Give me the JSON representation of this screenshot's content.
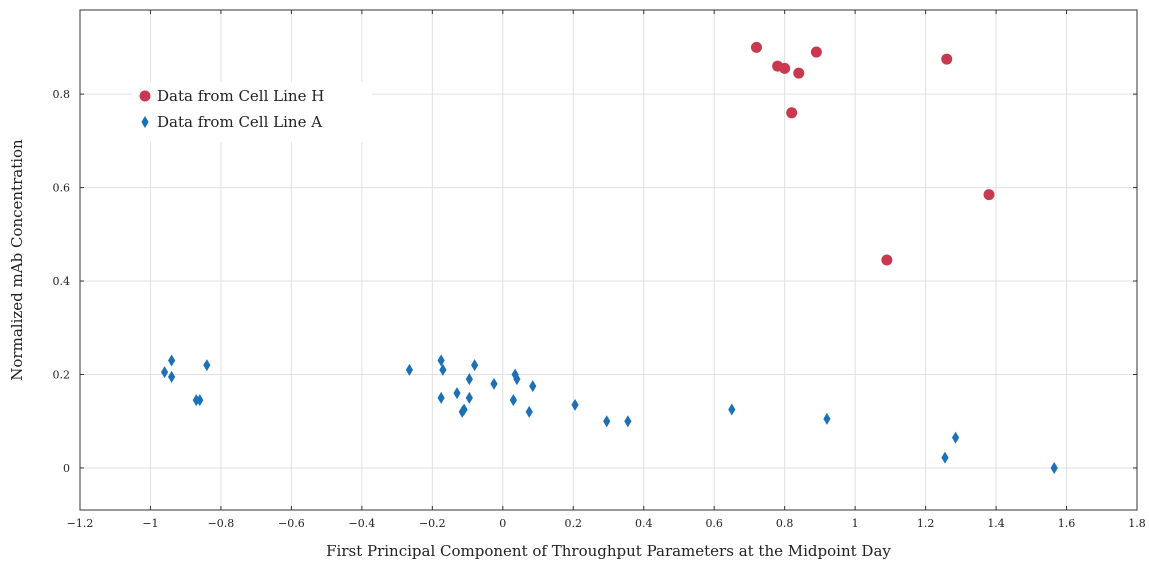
{
  "chart_data": {
    "type": "scatter",
    "title": "",
    "xlabel": "First Principal Component of Throughput Parameters at the Midpoint Day",
    "ylabel": "Normalized mAb Concentration",
    "xlim": [
      -1.2,
      1.8
    ],
    "ylim": [
      -0.09,
      0.98
    ],
    "x_ticks": [
      -1.2,
      -1,
      -0.8,
      -0.6,
      -0.4,
      -0.2,
      0,
      0.2,
      0.4,
      0.6,
      0.8,
      1,
      1.2,
      1.4,
      1.6,
      1.8
    ],
    "x_tick_labels": [
      "−1.2",
      "−1",
      "−0.8",
      "−0.6",
      "−0.4",
      "−0.2",
      "0",
      "0.2",
      "0.4",
      "0.6",
      "0.8",
      "1",
      "1.2",
      "1.4",
      "1.6",
      "1.8"
    ],
    "y_ticks": [
      0,
      0.2,
      0.4,
      0.6,
      0.8
    ],
    "y_tick_labels": [
      "0",
      "0.2",
      "0.4",
      "0.6",
      "0.8"
    ],
    "grid": true,
    "legend_position": "top-left",
    "series": [
      {
        "name": "Data from Cell Line H",
        "marker": "circle",
        "color": "#c8394f",
        "points": [
          [
            0.72,
            0.9
          ],
          [
            0.78,
            0.86
          ],
          [
            0.8,
            0.855
          ],
          [
            0.82,
            0.76
          ],
          [
            0.84,
            0.845
          ],
          [
            0.89,
            0.89
          ],
          [
            1.09,
            0.445
          ],
          [
            1.26,
            0.875
          ],
          [
            1.38,
            0.585
          ]
        ]
      },
      {
        "name": "Data from Cell Line A",
        "marker": "diamond",
        "color": "#1c70b6",
        "points": [
          [
            -0.96,
            0.205
          ],
          [
            -0.94,
            0.23
          ],
          [
            -0.94,
            0.195
          ],
          [
            -0.87,
            0.145
          ],
          [
            -0.86,
            0.145
          ],
          [
            -0.84,
            0.22
          ],
          [
            -0.265,
            0.21
          ],
          [
            -0.175,
            0.23
          ],
          [
            -0.17,
            0.21
          ],
          [
            -0.175,
            0.15
          ],
          [
            -0.13,
            0.16
          ],
          [
            -0.115,
            0.12
          ],
          [
            -0.11,
            0.125
          ],
          [
            -0.095,
            0.19
          ],
          [
            -0.095,
            0.15
          ],
          [
            -0.08,
            0.22
          ],
          [
            -0.025,
            0.18
          ],
          [
            0.03,
            0.145
          ],
          [
            0.035,
            0.2
          ],
          [
            0.04,
            0.19
          ],
          [
            0.075,
            0.12
          ],
          [
            0.085,
            0.175
          ],
          [
            0.205,
            0.135
          ],
          [
            0.295,
            0.1
          ],
          [
            0.355,
            0.1
          ],
          [
            0.65,
            0.125
          ],
          [
            0.92,
            0.105
          ],
          [
            1.255,
            0.022
          ],
          [
            1.285,
            0.065
          ],
          [
            1.565,
            0.0
          ]
        ]
      }
    ]
  }
}
